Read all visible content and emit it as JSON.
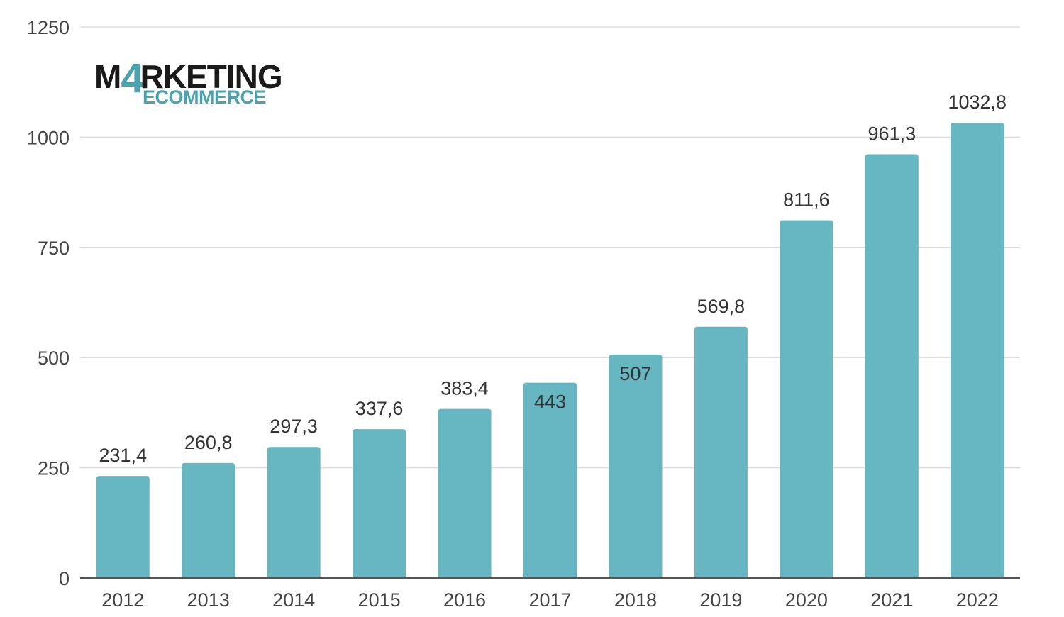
{
  "logo": {
    "part1": "M",
    "part_four": "4",
    "part2": "RKETING",
    "sub": "ECOMMERCE",
    "colors": {
      "dark": "#1a1a1a",
      "accent": "#4aa3ae"
    }
  },
  "chart_data": {
    "type": "bar",
    "categories": [
      "2012",
      "2013",
      "2014",
      "2015",
      "2016",
      "2017",
      "2018",
      "2019",
      "2020",
      "2021",
      "2022"
    ],
    "values": [
      231.4,
      260.8,
      297.3,
      337.6,
      383.4,
      443,
      507,
      569.8,
      811.6,
      961.3,
      1032.8
    ],
    "value_labels": [
      "231,4",
      "260,8",
      "297,3",
      "337,6",
      "383,4",
      "443",
      "507",
      "569,8",
      "811,6",
      "961,3",
      "1032,8"
    ],
    "labels_inside_bar": [
      false,
      false,
      false,
      false,
      false,
      true,
      true,
      false,
      false,
      false,
      false
    ],
    "yticks": [
      "0",
      "250",
      "500",
      "750",
      "1000",
      "1250"
    ],
    "ylim": [
      0,
      1250
    ],
    "grid": true,
    "bar_color": "#66b7c1",
    "grid_color": "#dddddd",
    "axis_color": "#555555"
  }
}
